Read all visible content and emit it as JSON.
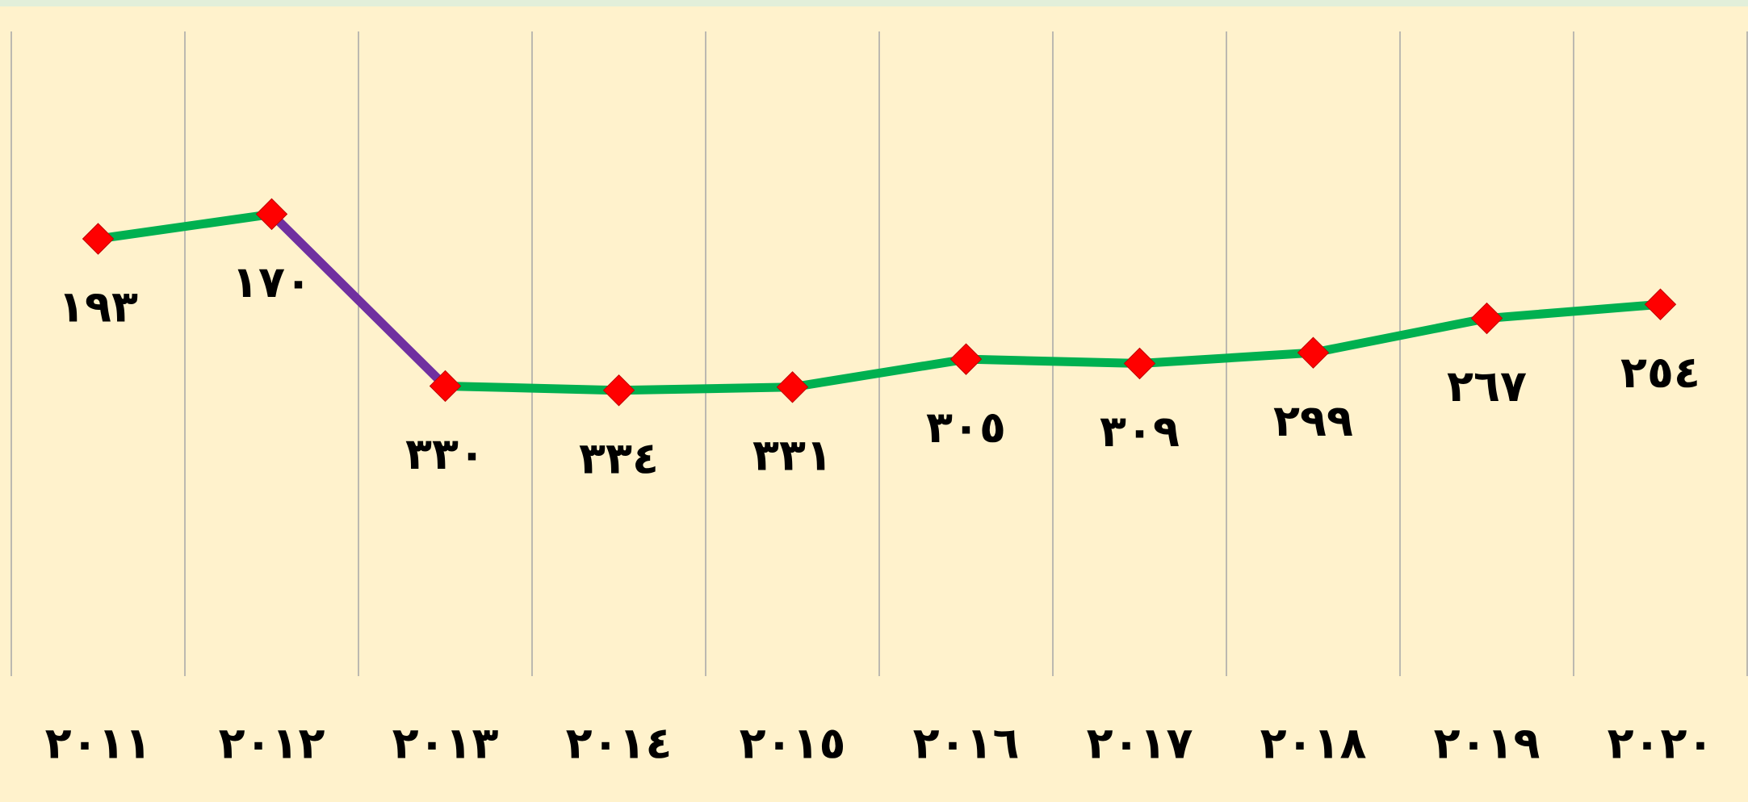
{
  "chart_data": {
    "type": "line",
    "categories": [
      "٢٠١١",
      "٢٠١٢",
      "٢٠١٣",
      "٢٠١٤",
      "٢٠١٥",
      "٢٠١٦",
      "٢٠١٧",
      "٢٠١٨",
      "٢٠١٩",
      "٢٠٢٠"
    ],
    "values": [
      193,
      170,
      330,
      334,
      331,
      305,
      309,
      299,
      267,
      254
    ],
    "value_labels": [
      "١٩٣",
      "١٧٠",
      "٣٣٠",
      "٣٣٤",
      "٣٣١",
      "٣٠٥",
      "٣٠٩",
      "٢٩٩",
      "٢٦٧",
      "٢٥٤"
    ],
    "color": "#00b050",
    "segment_colors": [
      "#00b050",
      "#7030a0",
      "#00b050",
      "#00b050",
      "#00b050",
      "#00b050",
      "#00b050",
      "#00b050",
      "#00b050"
    ],
    "marker_color": "#ff0000",
    "ylim": [
      0,
      600
    ],
    "y_reversed": true,
    "grid": true
  }
}
